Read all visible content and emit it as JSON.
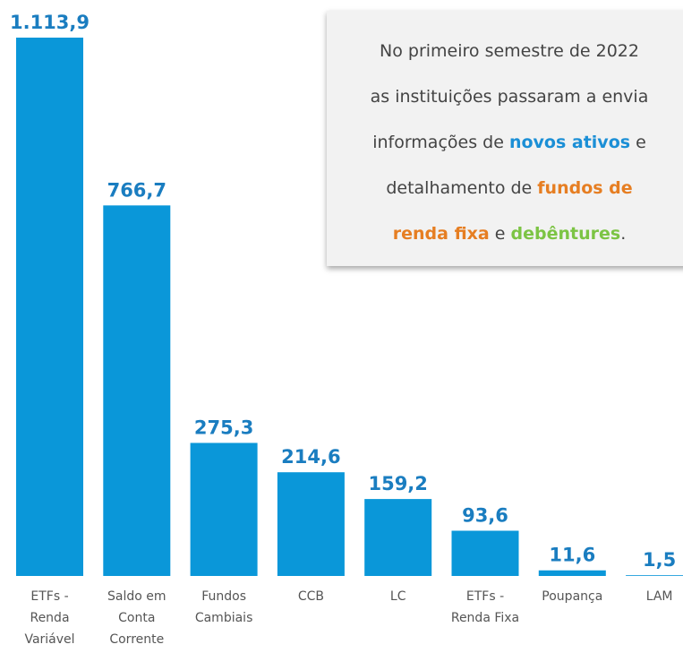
{
  "chart_data": {
    "type": "bar",
    "categories": [
      "ETFs -\nRenda\nVariável",
      "Saldo em\nConta\nCorrente",
      "Fundos\nCambiais",
      "CCB",
      "LC",
      "ETFs -\nRenda Fixa",
      "Poupança",
      "LAM"
    ],
    "values": [
      1113.9,
      766.7,
      275.3,
      214.6,
      159.2,
      93.6,
      11.6,
      1.5
    ],
    "value_labels": [
      "1.113,9",
      "766,7",
      "275,3",
      "214,6",
      "159,2",
      "93,6",
      "11,6",
      "1,5"
    ],
    "color": "#0a97d9",
    "annotation": [
      [
        {
          "text": "No primeiro semestre de 2022"
        }
      ],
      [
        {
          "text": "as instituições passaram a envia"
        }
      ],
      [
        {
          "text": "informações de "
        },
        {
          "text": "novos ativos",
          "color": "#1b8fd6"
        },
        {
          "text": " e"
        }
      ],
      [
        {
          "text": "detalhamento de "
        },
        {
          "text": "fundos de",
          "color": "#e67e22"
        }
      ],
      [
        {
          "text": "renda fixa",
          "color": "#e67e22"
        },
        {
          "text": " e "
        },
        {
          "text": "debêntures",
          "color": "#7cc444"
        },
        {
          "text": "."
        }
      ]
    ]
  }
}
